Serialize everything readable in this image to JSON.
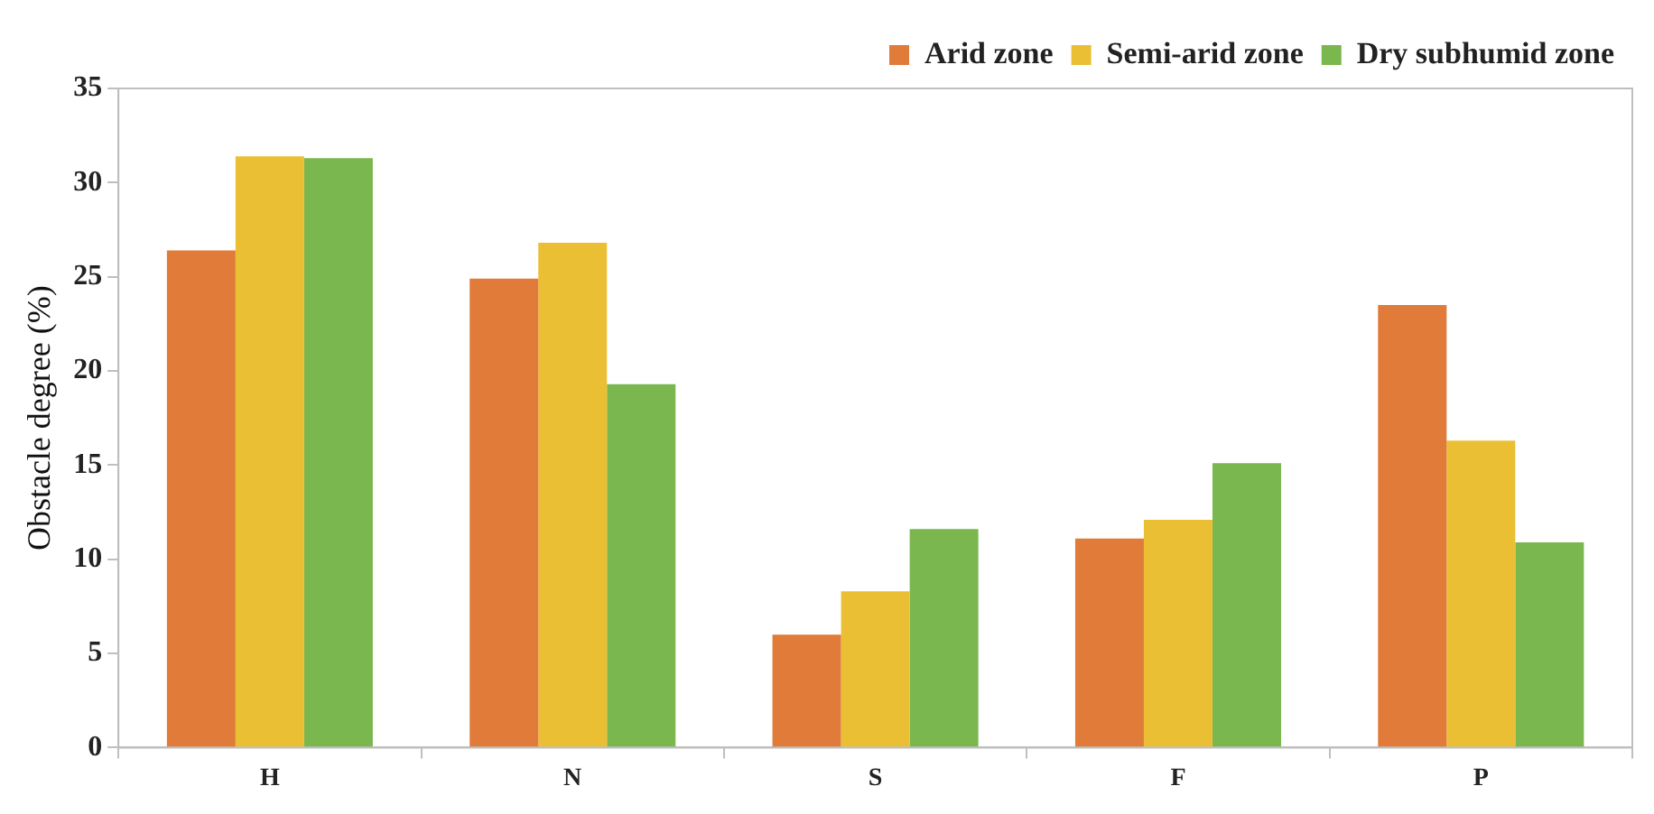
{
  "chart_data": {
    "type": "bar",
    "ylabel": "Obstacle degree (%)",
    "categories": [
      "H",
      "N",
      "S",
      "F",
      "P"
    ],
    "series": [
      {
        "name": "Arid zone",
        "color": "#e07b39",
        "values": [
          26.4,
          24.9,
          6.0,
          11.1,
          23.5
        ]
      },
      {
        "name": "Semi-arid zone",
        "color": "#ebbf33",
        "values": [
          31.4,
          26.8,
          8.3,
          12.1,
          16.3
        ]
      },
      {
        "name": "Dry subhumid zone",
        "color": "#7ab74e",
        "values": [
          31.3,
          19.3,
          11.6,
          15.1,
          10.9
        ]
      }
    ],
    "ylim": [
      0,
      35
    ],
    "yticks": [
      0,
      5,
      10,
      15,
      20,
      25,
      30,
      35
    ],
    "grid": false,
    "legend": "top right"
  }
}
